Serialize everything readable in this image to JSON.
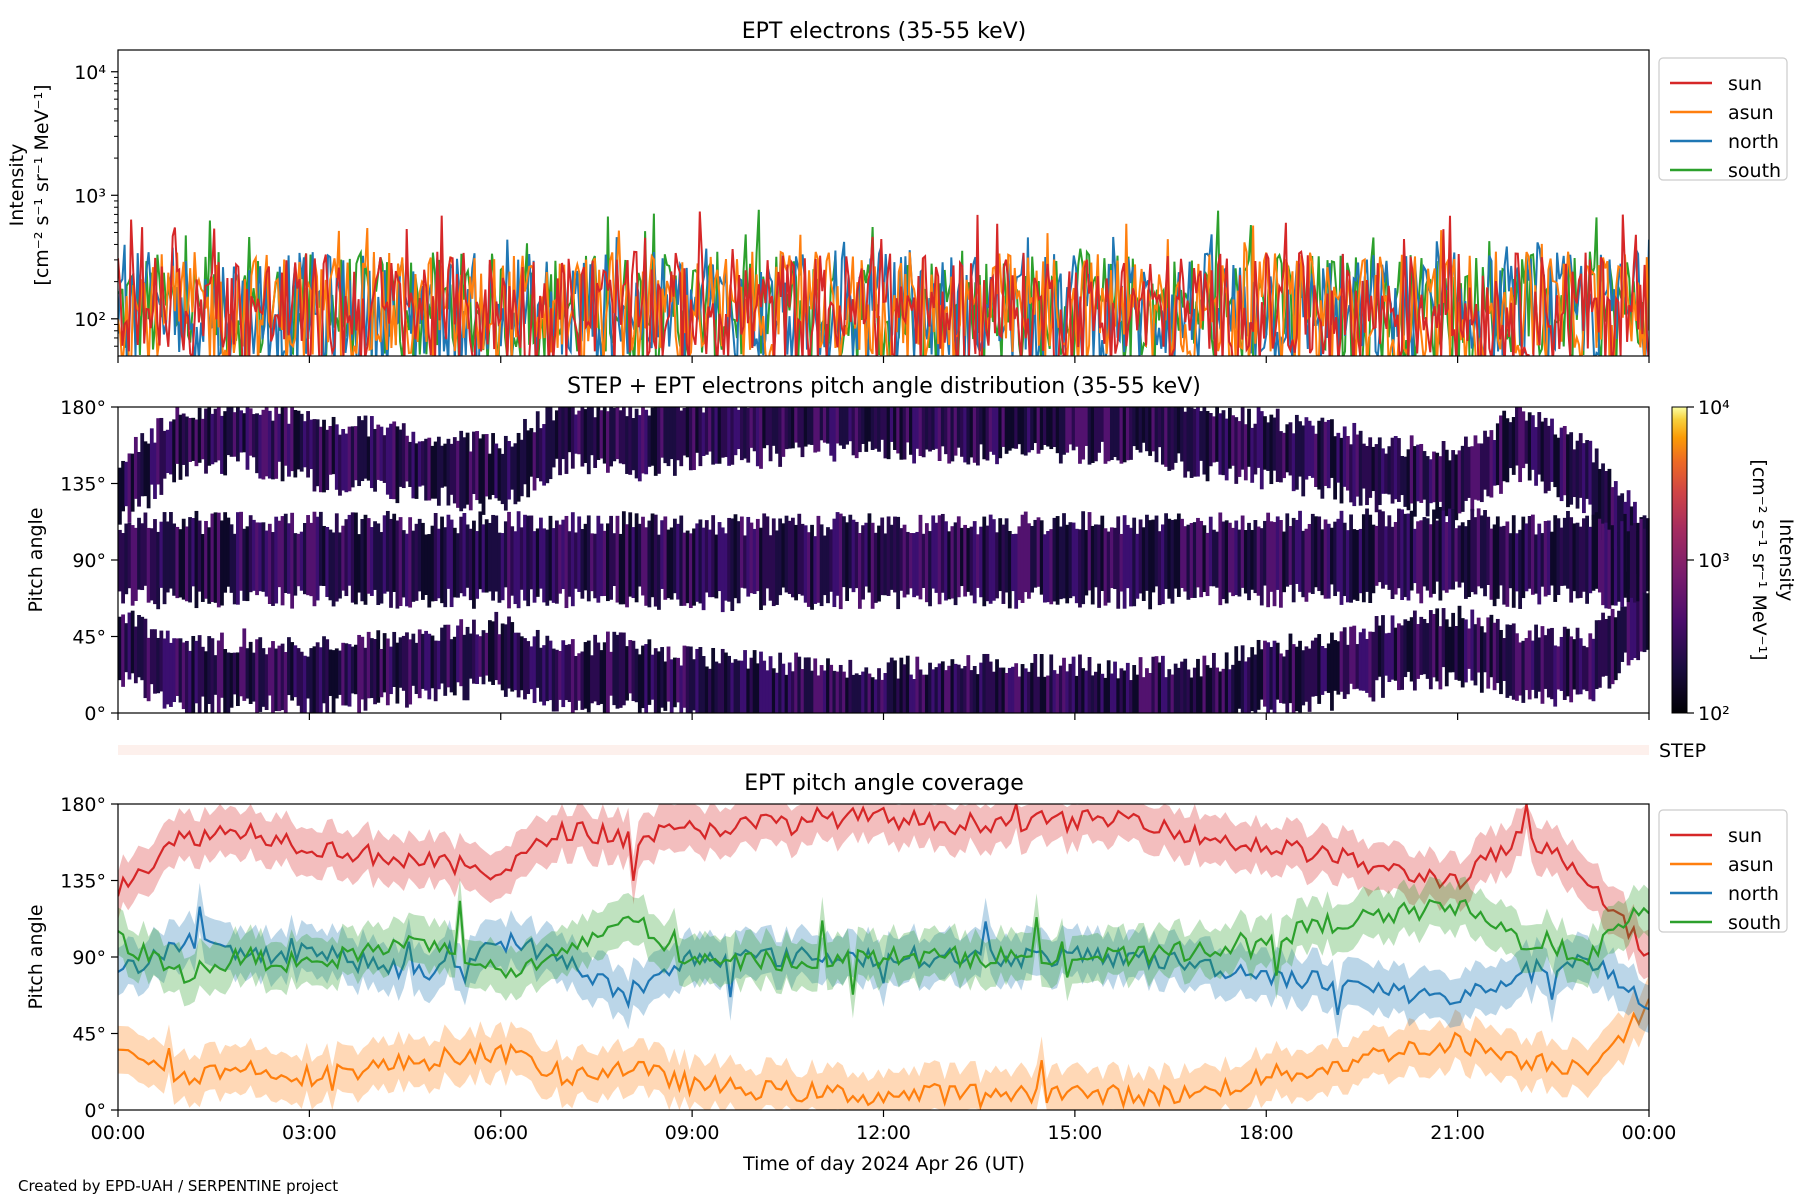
{
  "figure": {
    "credit": "Created by EPD-UAH / SERPENTINE project",
    "xlabel": "Time of day 2024 Apr 26 (UT)",
    "xticks": [
      "00:00",
      "03:00",
      "06:00",
      "09:00",
      "12:00",
      "15:00",
      "18:00",
      "21:00",
      "00:00"
    ]
  },
  "colors": {
    "sun": "#d62728",
    "asun": "#ff7f0e",
    "north": "#1f77b4",
    "south": "#2ca02c"
  },
  "chart_data": [
    {
      "type": "line",
      "title": "EPT electrons (35-55 keV)",
      "ylabel_line1": "Intensity",
      "ylabel_line2": "[cm⁻² s⁻¹ sr⁻¹ MeV⁻¹]",
      "yscale": "log",
      "ylim": [
        50,
        15000
      ],
      "yticks": [
        {
          "value": 100,
          "label": "10²"
        },
        {
          "value": 1000,
          "label": "10³"
        },
        {
          "value": 10000,
          "label": "10⁴"
        }
      ],
      "xlim": [
        "00:00",
        "24:00"
      ],
      "legend_position": "outside-right",
      "series": [
        {
          "name": "sun",
          "color": "#d62728",
          "typical_range": [
            50,
            350
          ],
          "max": 750
        },
        {
          "name": "asun",
          "color": "#ff7f0e",
          "typical_range": [
            50,
            350
          ],
          "max": 600
        },
        {
          "name": "north",
          "color": "#1f77b4",
          "typical_range": [
            50,
            350
          ],
          "max": 500
        },
        {
          "name": "south",
          "color": "#2ca02c",
          "typical_range": [
            50,
            350
          ],
          "max": 780
        }
      ]
    },
    {
      "type": "heatmap",
      "title": "STEP + EPT electrons pitch angle distribution (35-55 keV)",
      "ylabel": "Pitch angle",
      "ylim": [
        0,
        180
      ],
      "yticks": [
        "0°",
        "45°",
        "90°",
        "135°",
        "180°"
      ],
      "colorbar": {
        "label_line1": "Intensity",
        "label_line2": "[cm⁻² s⁻¹ sr⁻¹ MeV⁻¹]",
        "scale": "log",
        "range": [
          100,
          10000
        ],
        "ticks": [
          "10²",
          "10³",
          "10⁴"
        ],
        "colormap": "inferno"
      },
      "typical_intensity": 150
    },
    {
      "type": "bar",
      "label": "STEP",
      "color": "#fdf0ec"
    },
    {
      "type": "area",
      "title": "EPT pitch angle coverage",
      "ylabel": "Pitch angle",
      "ylim": [
        0,
        180
      ],
      "yticks": [
        "0°",
        "45°",
        "90°",
        "135°",
        "180°"
      ],
      "xlim": [
        "00:00",
        "24:00"
      ],
      "legend_position": "outside-right",
      "series": [
        {
          "name": "sun",
          "color": "#d62728",
          "x": [
            0,
            1,
            2,
            3,
            4,
            5,
            6,
            7,
            8,
            9,
            10,
            11,
            12,
            13,
            14,
            15,
            16,
            17,
            18,
            19,
            20,
            21,
            22,
            23,
            24
          ],
          "values": [
            130,
            160,
            165,
            155,
            150,
            145,
            140,
            165,
            160,
            165,
            168,
            172,
            172,
            168,
            170,
            170,
            172,
            160,
            155,
            150,
            140,
            135,
            160,
            140,
            90
          ]
        },
        {
          "name": "asun",
          "color": "#ff7f0e",
          "x": [
            0,
            1,
            2,
            3,
            4,
            5,
            6,
            7,
            8,
            9,
            10,
            11,
            12,
            13,
            14,
            15,
            16,
            17,
            18,
            19,
            20,
            21,
            22,
            23,
            24
          ],
          "values": [
            40,
            20,
            25,
            20,
            25,
            30,
            35,
            20,
            25,
            15,
            12,
            10,
            8,
            10,
            10,
            10,
            8,
            10,
            20,
            25,
            35,
            40,
            30,
            25,
            60
          ]
        },
        {
          "name": "north",
          "color": "#1f77b4",
          "x": [
            0,
            1,
            2,
            3,
            4,
            5,
            6,
            7,
            8,
            9,
            10,
            11,
            12,
            13,
            14,
            15,
            16,
            17,
            18,
            19,
            20,
            21,
            22,
            23,
            24
          ],
          "values": [
            80,
            100,
            90,
            95,
            85,
            80,
            100,
            90,
            65,
            90,
            90,
            90,
            90,
            90,
            90,
            90,
            90,
            85,
            80,
            75,
            70,
            65,
            80,
            90,
            60
          ]
        },
        {
          "name": "south",
          "color": "#2ca02c",
          "x": [
            0,
            1,
            2,
            3,
            4,
            5,
            6,
            7,
            8,
            9,
            10,
            11,
            12,
            13,
            14,
            15,
            16,
            17,
            18,
            19,
            20,
            21,
            22,
            23,
            24
          ],
          "values": [
            100,
            80,
            90,
            85,
            95,
            100,
            80,
            90,
            115,
            85,
            88,
            88,
            90,
            90,
            90,
            90,
            90,
            95,
            100,
            110,
            115,
            120,
            100,
            90,
            120
          ]
        }
      ]
    }
  ]
}
